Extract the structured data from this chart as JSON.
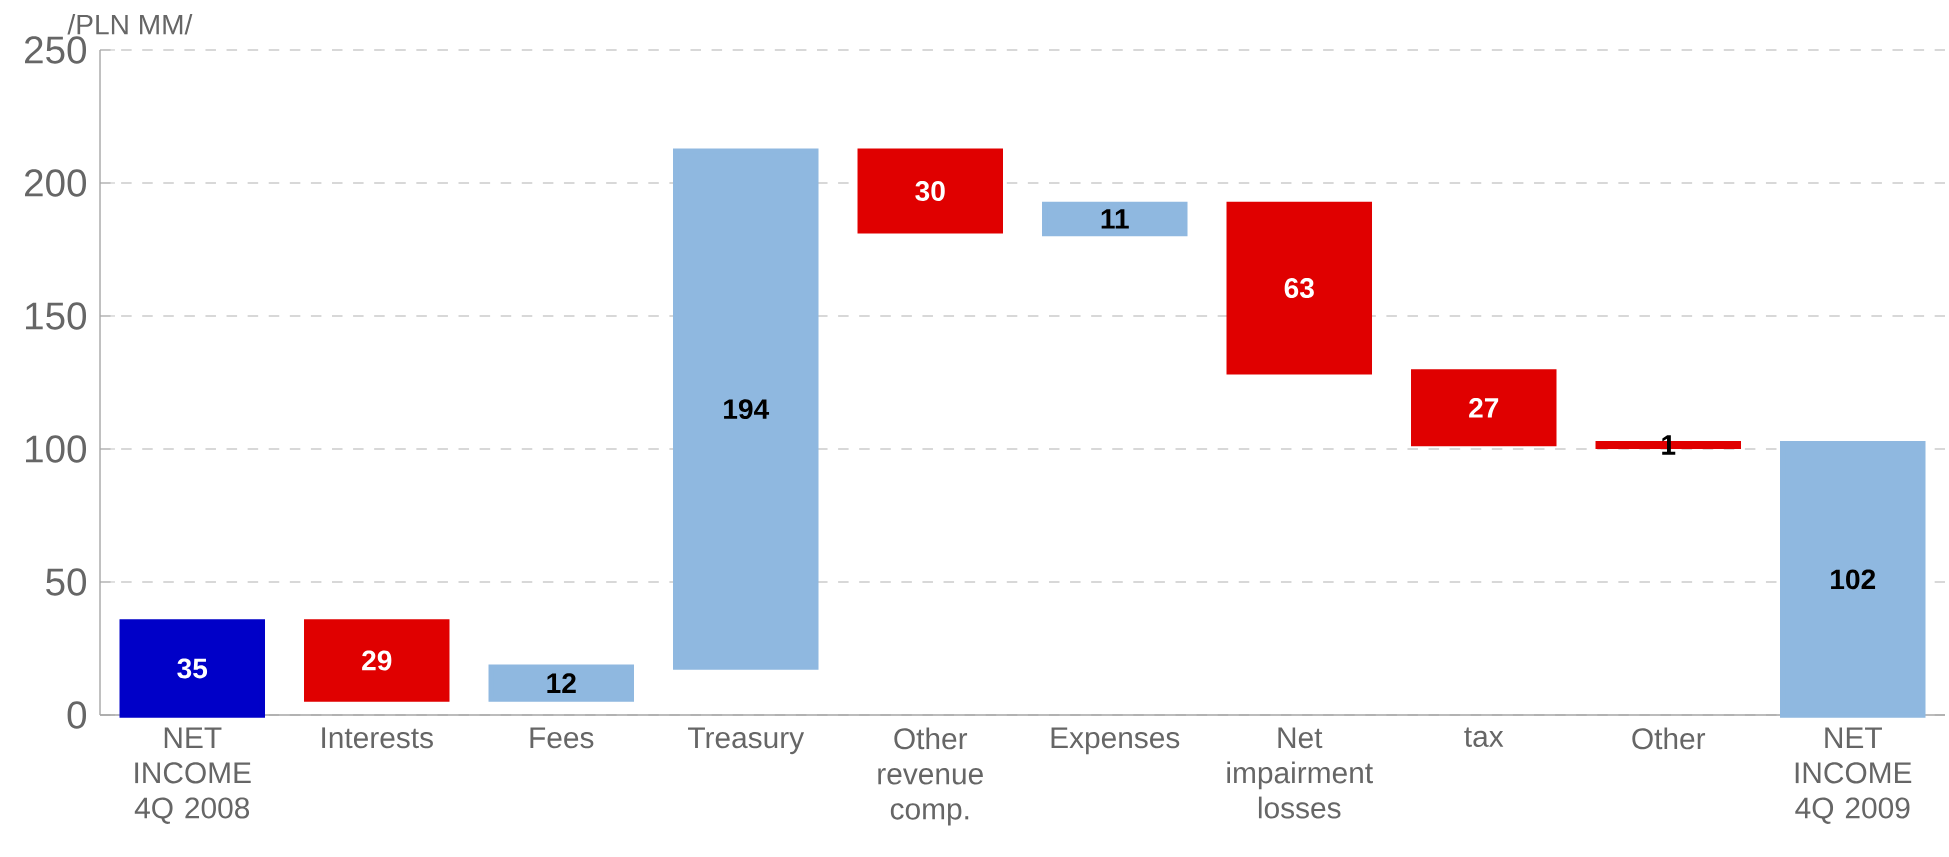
{
  "chart_data": {
    "type": "bar",
    "ylabel": "/PLN MM/",
    "categories": [
      "NET INCOME 4Q 2008",
      "Interests",
      "Fees",
      "Treasury",
      "Other revenue comp.",
      "Expenses",
      "Net impairment losses",
      "tax",
      "Other",
      "NET INCOME 4Q 2009"
    ],
    "values": [
      35,
      29,
      12,
      194,
      30,
      11,
      63,
      27,
      1,
      102
    ],
    "base": [
      0,
      6,
      6,
      18,
      182,
      181,
      129,
      102,
      101,
      0
    ],
    "colors": [
      "#0000c8",
      "#e00000",
      "#8fb8e0",
      "#8fb8e0",
      "#e00000",
      "#8fb8e0",
      "#e00000",
      "#e00000",
      "#e00000",
      "#8fb8e0"
    ],
    "ylim": [
      0,
      250
    ],
    "yticks": [
      0,
      50,
      100,
      150,
      200,
      250
    ],
    "grid": "y",
    "data_labels": true
  }
}
